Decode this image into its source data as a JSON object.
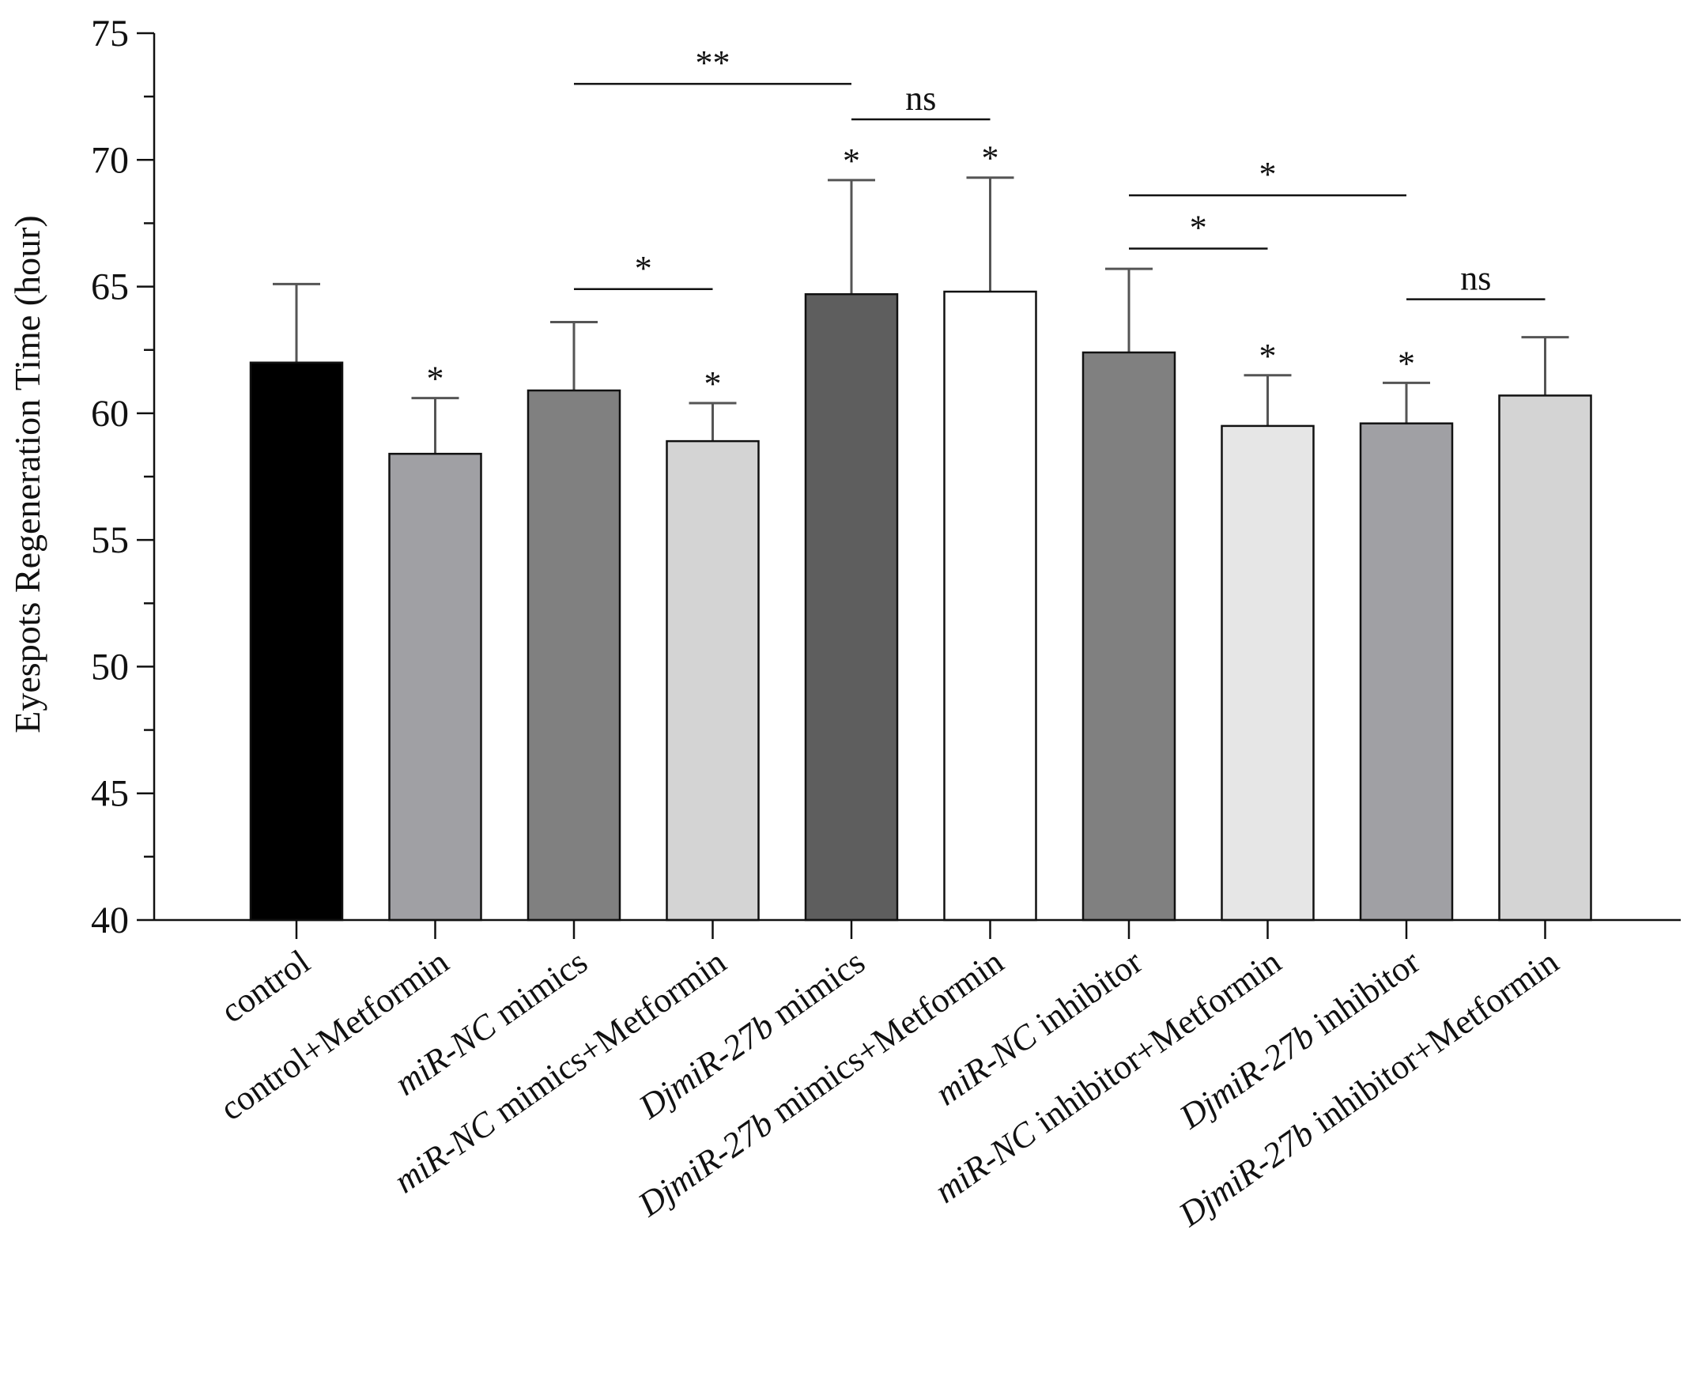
{
  "chart_data": {
    "type": "bar",
    "title": "",
    "xlabel": "",
    "ylabel": "Eyespots Regeneration Time (hour)",
    "ylim": [
      40,
      75
    ],
    "yticks": [
      40,
      45,
      50,
      55,
      60,
      65,
      70,
      75
    ],
    "grid": false,
    "categories": [
      [
        {
          "t": "control",
          "i": false
        }
      ],
      [
        {
          "t": "control+Metformin",
          "i": false
        }
      ],
      [
        {
          "t": "miR-NC",
          "i": true
        },
        {
          "t": " mimics",
          "i": false
        }
      ],
      [
        {
          "t": "miR-NC",
          "i": true
        },
        {
          "t": " mimics+Metformin",
          "i": false
        }
      ],
      [
        {
          "t": "DjmiR-27b",
          "i": true
        },
        {
          "t": " mimics",
          "i": false
        }
      ],
      [
        {
          "t": "DjmiR-27b",
          "i": true
        },
        {
          "t": " mimics+Metformin",
          "i": false
        }
      ],
      [
        {
          "t": "miR-NC",
          "i": true
        },
        {
          "t": " inhibitor",
          "i": false
        }
      ],
      [
        {
          "t": "miR-NC",
          "i": true
        },
        {
          "t": " inhibitor+Metformin",
          "i": false
        }
      ],
      [
        {
          "t": "DjmiR-27b",
          "i": true
        },
        {
          "t": " inhibitor",
          "i": false
        }
      ],
      [
        {
          "t": "DjmiR-27b",
          "i": true
        },
        {
          "t": " inhibitor+Metformin",
          "i": false
        }
      ]
    ],
    "values": [
      62.0,
      58.4,
      60.9,
      58.9,
      64.7,
      64.8,
      62.4,
      59.5,
      59.6,
      60.7
    ],
    "errors": [
      3.1,
      2.2,
      2.7,
      1.5,
      4.5,
      4.5,
      3.3,
      2.0,
      1.6,
      2.3
    ],
    "colors": [
      "#000000",
      "#a0a0a4",
      "#808080",
      "#d4d4d4",
      "#5e5e5e",
      "#ffffff",
      "#808080",
      "#e6e6e6",
      "#a0a0a4",
      "#d4d4d4"
    ],
    "bar_marks": [
      "",
      "*",
      "",
      "*",
      "*",
      "*",
      "",
      "*",
      "*",
      ""
    ],
    "comparisons": [
      {
        "from": 2,
        "to": 4,
        "y": 73.0,
        "label": "**"
      },
      {
        "from": 4,
        "to": 5,
        "y": 71.6,
        "label": "ns"
      },
      {
        "from": 2,
        "to": 3,
        "y": 64.9,
        "label": "*"
      },
      {
        "from": 6,
        "to": 8,
        "y": 68.6,
        "label": "*"
      },
      {
        "from": 6,
        "to": 7,
        "y": 66.5,
        "label": "*"
      },
      {
        "from": 8,
        "to": 9,
        "y": 64.5,
        "label": "ns"
      }
    ]
  }
}
